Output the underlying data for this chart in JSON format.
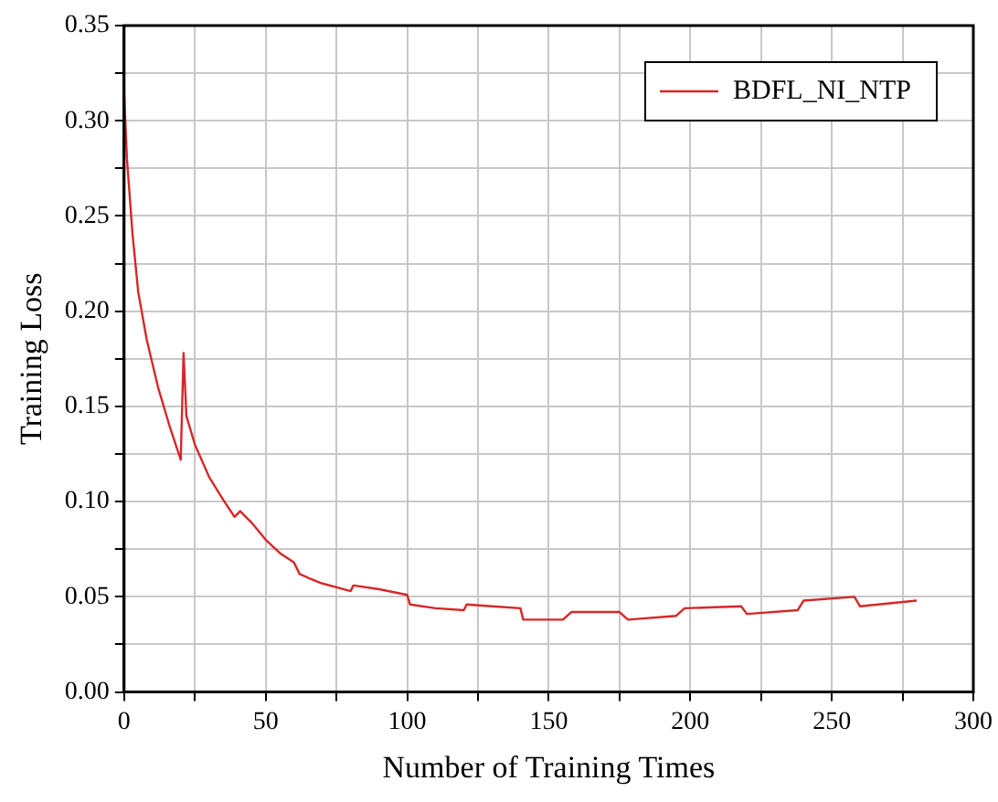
{
  "chart_data": {
    "type": "line",
    "xlabel": "Number of Training Times",
    "ylabel": "Training Loss",
    "x": [
      0,
      1,
      3,
      5,
      8,
      12,
      16,
      20,
      21,
      22,
      25,
      30,
      35,
      39,
      41,
      45,
      50,
      55,
      60,
      62,
      65,
      70,
      75,
      80,
      81,
      90,
      100,
      101,
      110,
      120,
      121,
      130,
      140,
      141,
      155,
      158,
      175,
      178,
      195,
      198,
      218,
      220,
      238,
      240,
      258,
      260,
      280
    ],
    "series": [
      {
        "name": "BDFL_NI_NTP",
        "color": "#d62728",
        "values": [
          0.315,
          0.28,
          0.24,
          0.21,
          0.185,
          0.16,
          0.14,
          0.122,
          0.178,
          0.145,
          0.13,
          0.113,
          0.101,
          0.092,
          0.095,
          0.089,
          0.08,
          0.073,
          0.068,
          0.062,
          0.06,
          0.057,
          0.055,
          0.053,
          0.056,
          0.054,
          0.051,
          0.046,
          0.044,
          0.043,
          0.046,
          0.045,
          0.044,
          0.038,
          0.038,
          0.042,
          0.042,
          0.038,
          0.04,
          0.044,
          0.045,
          0.041,
          0.043,
          0.048,
          0.05,
          0.045,
          0.048
        ]
      }
    ],
    "xlim": [
      0,
      300
    ],
    "ylim": [
      0,
      0.35
    ],
    "xticks": [
      0,
      {
        "value": 25,
        "label": null
      },
      50,
      {
        "value": 75,
        "label": null
      },
      100,
      {
        "value": 125,
        "label": null
      },
      150,
      {
        "value": 175,
        "label": null
      },
      200,
      {
        "value": 225,
        "label": null
      },
      250,
      {
        "value": 275,
        "label": null
      },
      300
    ],
    "yticks": [
      {
        "value": 0,
        "label": "0.00"
      },
      {
        "value": 0.025,
        "label": null
      },
      {
        "value": 0.05,
        "label": "0.05"
      },
      {
        "value": 0.075,
        "label": null
      },
      {
        "value": 0.1,
        "label": "0.10"
      },
      {
        "value": 0.125,
        "label": null
      },
      {
        "value": 0.15,
        "label": "0.15"
      },
      {
        "value": 0.175,
        "label": null
      },
      {
        "value": 0.2,
        "label": "0.20"
      },
      {
        "value": 0.225,
        "label": null
      },
      {
        "value": 0.25,
        "label": "0.25"
      },
      {
        "value": 0.275,
        "label": null
      },
      {
        "value": 0.3,
        "label": "0.30"
      },
      {
        "value": 0.325,
        "label": null
      },
      {
        "value": 0.35,
        "label": "0.35"
      }
    ],
    "grid": true,
    "legend": "top right",
    "marker": "none",
    "line_style": "solid"
  }
}
